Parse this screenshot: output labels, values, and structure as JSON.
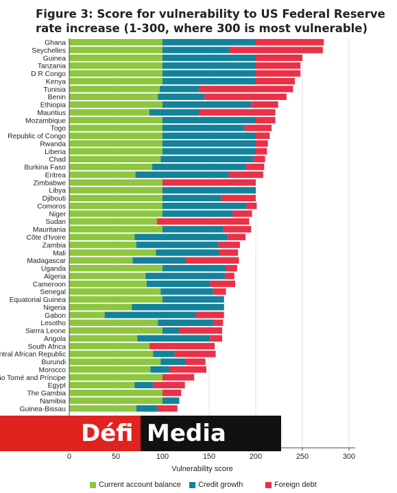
{
  "chart_data": {
    "type": "bar",
    "orientation": "horizontal",
    "stacked": true,
    "title": "Figure 3: Score for vulnerability to US Federal Reserve rate increase (1-300, where 300 is most vulnerable)",
    "xlabel": "Vulnerability score",
    "ylabel": "",
    "xlim": [
      0,
      300
    ],
    "xticks": [
      0,
      50,
      100,
      150,
      200,
      250,
      300
    ],
    "grid": true,
    "legend_position": "bottom",
    "categories": [
      "Ghana",
      "Seychelles",
      "Guinea",
      "Tanzania",
      "D R Congo",
      "Kenya",
      "Tunisia",
      "Benin",
      "Ethiopia",
      "Mauritius",
      "Mozambique",
      "Togo",
      "Republic of Congo",
      "Rwanda",
      "Liberia",
      "Chad",
      "Burkina Faso",
      "Eritrea",
      "Zimbabwe",
      "Libya",
      "Djibouti",
      "Comoros",
      "Niger",
      "Sudan",
      "Mauritania",
      "Côte d'Ivoire",
      "Zambia",
      "Mali",
      "Madagascar",
      "Uganda",
      "Algeria",
      "Cameroon",
      "Senegal",
      "Equatorial Guinea",
      "Nigeria",
      "Gabon",
      "Lesotho",
      "Sierra Leone",
      "Angola",
      "South Africa",
      "Central African Republic",
      "Burundi",
      "Morocco",
      "São Tomé and Príncipe",
      "Egypt",
      "The Gambia",
      "Namibia",
      "Guinea-Bissau"
    ],
    "series": [
      {
        "name": "Current account balance",
        "color": "#8dc63f",
        "values": [
          100,
          100,
          100,
          100,
          100,
          100,
          97,
          95,
          100,
          86,
          100,
          100,
          100,
          100,
          100,
          98,
          89,
          71,
          100,
          100,
          100,
          100,
          100,
          94,
          100,
          70,
          72,
          93,
          68,
          100,
          82,
          83,
          98,
          100,
          67,
          38,
          95,
          100,
          73,
          86,
          90,
          98,
          87,
          100,
          70,
          100,
          100,
          72
        ]
      },
      {
        "name": "Credit growth",
        "color": "#13829a",
        "values": [
          100,
          72,
          100,
          100,
          100,
          100,
          42,
          50,
          95,
          53,
          100,
          88,
          100,
          100,
          100,
          100,
          100,
          100,
          0,
          100,
          63,
          90,
          75,
          0,
          65,
          100,
          88,
          68,
          57,
          68,
          85,
          68,
          57,
          66,
          99,
          98,
          60,
          18,
          78,
          0,
          23,
          27,
          20,
          0,
          20,
          0,
          18,
          23
        ]
      },
      {
        "name": "Foreign debt",
        "color": "#ea3147",
        "values": [
          73,
          100,
          50,
          48,
          48,
          42,
          101,
          88,
          29,
          82,
          21,
          29,
          15,
          13,
          12,
          12,
          20,
          37,
          100,
          0,
          37,
          11,
          21,
          99,
          30,
          19,
          23,
          20,
          57,
          12,
          10,
          27,
          13,
          0,
          0,
          30,
          10,
          46,
          13,
          70,
          44,
          21,
          40,
          34,
          34,
          20,
          0,
          21
        ]
      }
    ]
  },
  "logo": {
    "text_red": "Défi",
    "text_black": "Media"
  }
}
